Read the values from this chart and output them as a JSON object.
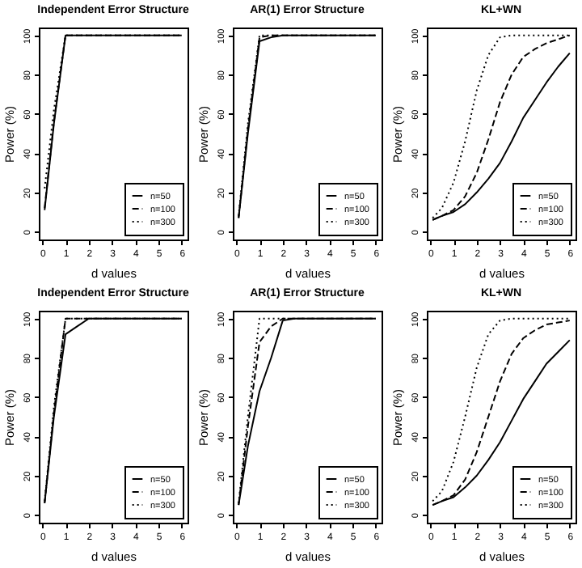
{
  "chart_data": [
    {
      "type": "line",
      "title": "Independent Error Structure",
      "xlabel": "d values",
      "ylabel": "Power (%)",
      "x": [
        0.1,
        0.5,
        1,
        1.5,
        2,
        2.5,
        3,
        3.5,
        4,
        4.5,
        5,
        5.5,
        6
      ],
      "xlim": [
        -0.15,
        6.25
      ],
      "ylim": [
        -4,
        104
      ],
      "xticks": [
        0,
        1,
        2,
        3,
        4,
        5,
        6
      ],
      "yticks": [
        0,
        20,
        40,
        60,
        80,
        100
      ],
      "grid": false,
      "legend": "bottom right",
      "marker": "none",
      "series": [
        {
          "name": "n=50",
          "color": "#000000",
          "line_style": "solid",
          "values": [
            11,
            55,
            100,
            100,
            100,
            100,
            100,
            100,
            100,
            100,
            100,
            100,
            100
          ]
        },
        {
          "name": "n=100",
          "color": "#000000",
          "line_style": "dashed",
          "values": [
            12,
            56,
            100,
            100,
            100,
            100,
            100,
            100,
            100,
            100,
            100,
            100,
            100
          ]
        },
        {
          "name": "n=300",
          "color": "#000000",
          "line_style": "dotted",
          "values": [
            22,
            62,
            100,
            100,
            100,
            100,
            100,
            100,
            100,
            100,
            100,
            100,
            100
          ]
        }
      ]
    },
    {
      "type": "line",
      "title": "AR(1) Error Structure",
      "xlabel": "d values",
      "ylabel": "Power (%)",
      "x": [
        0.1,
        0.5,
        1,
        1.5,
        2,
        2.5,
        3,
        3.5,
        4,
        4.5,
        5,
        5.5,
        6
      ],
      "xlim": [
        -0.15,
        6.25
      ],
      "ylim": [
        -4,
        104
      ],
      "xticks": [
        0,
        1,
        2,
        3,
        4,
        5,
        6
      ],
      "yticks": [
        0,
        20,
        40,
        60,
        80,
        100
      ],
      "grid": false,
      "legend": "bottom right",
      "marker": "none",
      "series": [
        {
          "name": "n=50",
          "color": "#000000",
          "line_style": "solid",
          "values": [
            7,
            50,
            97,
            99,
            100,
            100,
            100,
            100,
            100,
            100,
            100,
            100,
            100
          ]
        },
        {
          "name": "n=100",
          "color": "#000000",
          "line_style": "dashed",
          "values": [
            7,
            52,
            99,
            100,
            100,
            100,
            100,
            100,
            100,
            100,
            100,
            100,
            100
          ]
        },
        {
          "name": "n=300",
          "color": "#000000",
          "line_style": "dotted",
          "values": [
            8,
            55,
            100,
            100,
            100,
            100,
            100,
            100,
            100,
            100,
            100,
            100,
            100
          ]
        }
      ]
    },
    {
      "type": "line",
      "title": "KL+WN",
      "xlabel": "d values",
      "ylabel": "Power (%)",
      "x": [
        0.1,
        0.5,
        1,
        1.5,
        2,
        2.5,
        3,
        3.5,
        4,
        4.5,
        5,
        5.5,
        6
      ],
      "xlim": [
        -0.15,
        6.25
      ],
      "ylim": [
        -4,
        104
      ],
      "xticks": [
        0,
        1,
        2,
        3,
        4,
        5,
        6
      ],
      "yticks": [
        0,
        20,
        40,
        60,
        80,
        100
      ],
      "grid": false,
      "legend": "bottom right",
      "marker": "none",
      "series": [
        {
          "name": "n=50",
          "color": "#000000",
          "line_style": "solid",
          "values": [
            6,
            8,
            10,
            14,
            20,
            27,
            35,
            46,
            58,
            67,
            76,
            84,
            91
          ]
        },
        {
          "name": "n=100",
          "color": "#000000",
          "line_style": "dashed",
          "values": [
            6,
            8,
            11,
            18,
            30,
            47,
            66,
            80,
            89,
            93,
            96,
            98,
            100
          ]
        },
        {
          "name": "n=300",
          "color": "#000000",
          "line_style": "dotted",
          "values": [
            7,
            12,
            25,
            46,
            72,
            90,
            99,
            100,
            100,
            100,
            100,
            100,
            100
          ]
        }
      ]
    },
    {
      "type": "line",
      "title": "Independent Error Structure",
      "xlabel": "d values",
      "ylabel": "Power (%)",
      "x": [
        0.1,
        0.5,
        1,
        1.5,
        2,
        2.5,
        3,
        3.5,
        4,
        4.5,
        5,
        5.5,
        6
      ],
      "xlim": [
        -0.15,
        6.25
      ],
      "ylim": [
        -4,
        104
      ],
      "xticks": [
        0,
        1,
        2,
        3,
        4,
        5,
        6
      ],
      "yticks": [
        0,
        20,
        40,
        60,
        80,
        100
      ],
      "grid": false,
      "legend": "bottom right",
      "marker": "none",
      "series": [
        {
          "name": "n=50",
          "color": "#000000",
          "line_style": "solid",
          "values": [
            6,
            50,
            92,
            96,
            100,
            100,
            100,
            100,
            100,
            100,
            100,
            100,
            100
          ]
        },
        {
          "name": "n=100",
          "color": "#000000",
          "line_style": "dashed",
          "values": [
            6,
            52,
            100,
            100,
            100,
            100,
            100,
            100,
            100,
            100,
            100,
            100,
            100
          ]
        },
        {
          "name": "n=300",
          "color": "#000000",
          "line_style": "dotted",
          "values": [
            7,
            55,
            100,
            100,
            100,
            100,
            100,
            100,
            100,
            100,
            100,
            100,
            100
          ]
        }
      ]
    },
    {
      "type": "line",
      "title": "AR(1) Error Structure",
      "xlabel": "d values",
      "ylabel": "Power (%)",
      "x": [
        0.1,
        0.5,
        1,
        1.5,
        2,
        2.5,
        3,
        3.5,
        4,
        4.5,
        5,
        5.5,
        6
      ],
      "xlim": [
        -0.15,
        6.25
      ],
      "ylim": [
        -4,
        104
      ],
      "xticks": [
        0,
        1,
        2,
        3,
        4,
        5,
        6
      ],
      "yticks": [
        0,
        20,
        40,
        60,
        80,
        100
      ],
      "grid": false,
      "legend": "bottom right",
      "marker": "none",
      "series": [
        {
          "name": "n=50",
          "color": "#000000",
          "line_style": "solid",
          "values": [
            5,
            35,
            63,
            80,
            99,
            100,
            100,
            100,
            100,
            100,
            100,
            100,
            100
          ]
        },
        {
          "name": "n=100",
          "color": "#000000",
          "line_style": "dashed",
          "values": [
            5,
            45,
            88,
            96,
            100,
            100,
            100,
            100,
            100,
            100,
            100,
            100,
            100
          ]
        },
        {
          "name": "n=300",
          "color": "#000000",
          "line_style": "dotted",
          "values": [
            6,
            50,
            100,
            100,
            100,
            100,
            100,
            100,
            100,
            100,
            100,
            100,
            100
          ]
        }
      ]
    },
    {
      "type": "line",
      "title": "KL+WN",
      "xlabel": "d values",
      "ylabel": "Power (%)",
      "x": [
        0.1,
        0.5,
        1,
        1.5,
        2,
        2.5,
        3,
        3.5,
        4,
        4.5,
        5,
        5.5,
        6
      ],
      "xlim": [
        -0.15,
        6.25
      ],
      "ylim": [
        -4,
        104
      ],
      "xticks": [
        0,
        1,
        2,
        3,
        4,
        5,
        6
      ],
      "yticks": [
        0,
        20,
        40,
        60,
        80,
        100
      ],
      "grid": false,
      "legend": "bottom right",
      "marker": "none",
      "series": [
        {
          "name": "n=50",
          "color": "#000000",
          "line_style": "solid",
          "values": [
            5,
            7,
            9,
            14,
            20,
            28,
            37,
            48,
            59,
            68,
            77,
            83,
            89
          ]
        },
        {
          "name": "n=100",
          "color": "#000000",
          "line_style": "dashed",
          "values": [
            5,
            7,
            10,
            18,
            32,
            50,
            68,
            82,
            90,
            94,
            97,
            98,
            99
          ]
        },
        {
          "name": "n=300",
          "color": "#000000",
          "line_style": "dotted",
          "values": [
            7,
            12,
            27,
            50,
            75,
            92,
            99,
            100,
            100,
            100,
            100,
            100,
            100
          ]
        }
      ]
    }
  ]
}
